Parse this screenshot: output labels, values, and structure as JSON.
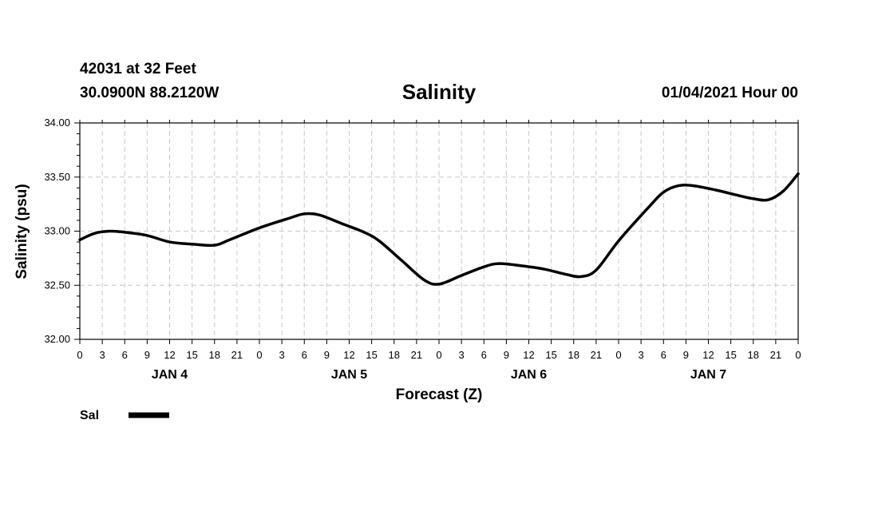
{
  "header": {
    "station": "42031 at 32 Feet",
    "coords": "30.0900N 88.2120W",
    "title": "Salinity",
    "datetime": "01/04/2021 Hour 00"
  },
  "chart_data": {
    "type": "line",
    "title": "Salinity",
    "xlabel": "Forecast (Z)",
    "ylabel": "Salinity (psu)",
    "ylim": [
      32.0,
      34.0
    ],
    "yticks": [
      "32.00",
      "32.50",
      "33.00",
      "33.50",
      "34.00"
    ],
    "xlim_hours": [
      0,
      96
    ],
    "xtick_labels": [
      "0",
      "3",
      "6",
      "9",
      "12",
      "15",
      "18",
      "21",
      "0",
      "3",
      "6",
      "9",
      "12",
      "15",
      "18",
      "21",
      "0",
      "3",
      "6",
      "9",
      "12",
      "15",
      "18",
      "21",
      "0",
      "3",
      "6",
      "9",
      "12",
      "15",
      "18",
      "21",
      "0"
    ],
    "day_labels": [
      {
        "label": "JAN 4",
        "hour": 12
      },
      {
        "label": "JAN 5",
        "hour": 36
      },
      {
        "label": "JAN 6",
        "hour": 60
      },
      {
        "label": "JAN 7",
        "hour": 84
      }
    ],
    "grid": true,
    "legend": "bottom-left",
    "series": [
      {
        "name": "Sal",
        "color": "#000000",
        "points": [
          [
            0,
            32.92
          ],
          [
            2,
            32.98
          ],
          [
            4,
            33.0
          ],
          [
            6,
            32.99
          ],
          [
            9,
            32.96
          ],
          [
            12,
            32.9
          ],
          [
            15,
            32.88
          ],
          [
            18,
            32.87
          ],
          [
            20,
            32.92
          ],
          [
            24,
            33.03
          ],
          [
            28,
            33.12
          ],
          [
            30,
            33.16
          ],
          [
            32,
            33.15
          ],
          [
            35,
            33.07
          ],
          [
            38,
            32.99
          ],
          [
            40,
            32.91
          ],
          [
            43,
            32.73
          ],
          [
            46,
            32.55
          ],
          [
            48,
            32.51
          ],
          [
            51,
            32.59
          ],
          [
            54,
            32.67
          ],
          [
            56,
            32.7
          ],
          [
            59,
            32.68
          ],
          [
            62,
            32.65
          ],
          [
            65,
            32.6
          ],
          [
            67,
            32.58
          ],
          [
            69,
            32.64
          ],
          [
            72,
            32.91
          ],
          [
            76,
            33.22
          ],
          [
            78,
            33.36
          ],
          [
            80,
            33.42
          ],
          [
            82,
            33.42
          ],
          [
            85,
            33.38
          ],
          [
            88,
            33.33
          ],
          [
            90,
            33.3
          ],
          [
            92,
            33.29
          ],
          [
            94,
            33.37
          ],
          [
            96,
            33.53
          ]
        ]
      }
    ]
  }
}
